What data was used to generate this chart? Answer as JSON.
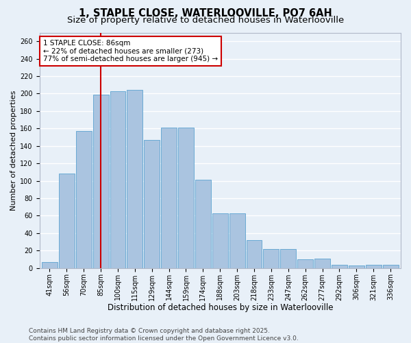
{
  "title": "1, STAPLE CLOSE, WATERLOOVILLE, PO7 6AH",
  "subtitle": "Size of property relative to detached houses in Waterlooville",
  "xlabel": "Distribution of detached houses by size in Waterlooville",
  "ylabel": "Number of detached properties",
  "categories": [
    "41sqm",
    "56sqm",
    "70sqm",
    "85sqm",
    "100sqm",
    "115sqm",
    "129sqm",
    "144sqm",
    "159sqm",
    "174sqm",
    "188sqm",
    "203sqm",
    "218sqm",
    "233sqm",
    "247sqm",
    "262sqm",
    "277sqm",
    "292sqm",
    "306sqm",
    "321sqm",
    "336sqm"
  ],
  "values": [
    7,
    108,
    157,
    199,
    203,
    204,
    147,
    161,
    161,
    101,
    63,
    63,
    32,
    22,
    22,
    10,
    11,
    4,
    3,
    4,
    4
  ],
  "bar_color": "#aac4e0",
  "bar_edge_color": "#6aaad4",
  "background_color": "#e8f0f8",
  "grid_color": "#ffffff",
  "vline_color": "#cc0000",
  "annotation_text": "1 STAPLE CLOSE: 86sqm\n← 22% of detached houses are smaller (273)\n77% of semi-detached houses are larger (945) →",
  "annotation_box_edge_color": "#cc0000",
  "ylim": [
    0,
    270
  ],
  "yticks": [
    0,
    20,
    40,
    60,
    80,
    100,
    120,
    140,
    160,
    180,
    200,
    220,
    240,
    260
  ],
  "footer": "Contains HM Land Registry data © Crown copyright and database right 2025.\nContains public sector information licensed under the Open Government Licence v3.0.",
  "title_fontsize": 10.5,
  "subtitle_fontsize": 9.5,
  "xlabel_fontsize": 8.5,
  "ylabel_fontsize": 8,
  "tick_fontsize": 7,
  "annotation_fontsize": 7.5,
  "footer_fontsize": 6.5,
  "vline_bar_index": 3
}
